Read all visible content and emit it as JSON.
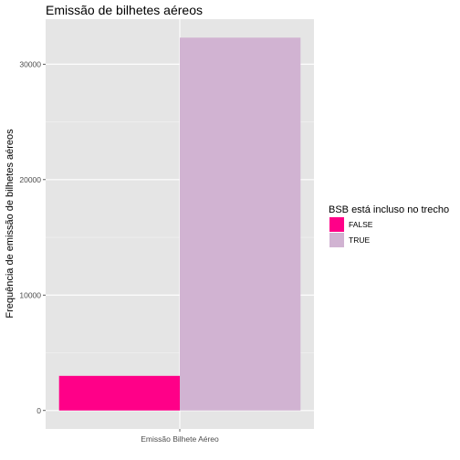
{
  "chart_data": {
    "type": "bar",
    "title": "Emissão de bilhetes aéreos",
    "xlabel": "",
    "ylabel": "Frequência de emissão de bilhetes aéreos",
    "categories": [
      "Emissão Bilhete Aéreo"
    ],
    "series": [
      {
        "name": "FALSE",
        "values": [
          3000
        ],
        "color": "#ff0088"
      },
      {
        "name": "TRUE",
        "values": [
          32300
        ],
        "color": "#d1b3d2"
      }
    ],
    "ylim": [
      -1600,
      33900
    ],
    "yticks": [
      0,
      10000,
      20000,
      30000
    ],
    "grid": true,
    "legend": {
      "title": "BSB está incluso no trecho",
      "placement": "right"
    },
    "panel_background": "#e5e5e5"
  }
}
